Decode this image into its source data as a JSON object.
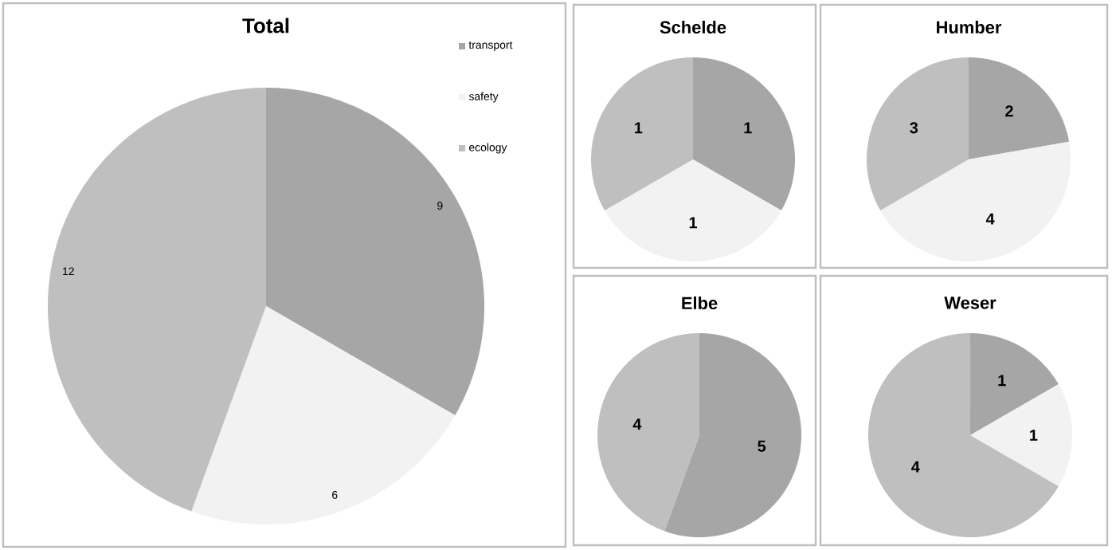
{
  "chart_data": [
    {
      "type": "pie",
      "title": "Total",
      "categories": [
        "transport",
        "safety",
        "ecology"
      ],
      "values": [
        9,
        6,
        12
      ],
      "colors": [
        "#a6a6a6",
        "#f2f2f2",
        "#bfbfbf"
      ],
      "legend": "top right",
      "data_labels": true
    },
    {
      "type": "pie",
      "title": "Schelde",
      "categories": [
        null,
        null,
        null
      ],
      "values": [
        1,
        1,
        1
      ],
      "colors": [
        "#a6a6a6",
        "#f2f2f2",
        "#bfbfbf"
      ],
      "data_labels": true
    },
    {
      "type": "pie",
      "title": "Humber",
      "categories": [
        null,
        null,
        null
      ],
      "values": [
        2,
        4,
        3
      ],
      "colors": [
        "#a6a6a6",
        "#f2f2f2",
        "#bfbfbf"
      ],
      "data_labels": true
    },
    {
      "type": "pie",
      "title": "Elbe",
      "categories": [
        null,
        null,
        null
      ],
      "values": [
        5,
        0,
        4
      ],
      "colors": [
        "#a6a6a6",
        "#f2f2f2",
        "#bfbfbf"
      ],
      "value_labels": [
        "5",
        null,
        "4"
      ]
    },
    {
      "type": "pie",
      "title": "Weser",
      "categories": [
        null,
        null,
        null
      ],
      "values": [
        1,
        1,
        4
      ],
      "colors": [
        "#a6a6a6",
        "#f2f2f2",
        "#bfbfbf"
      ],
      "data_labels": true
    }
  ]
}
